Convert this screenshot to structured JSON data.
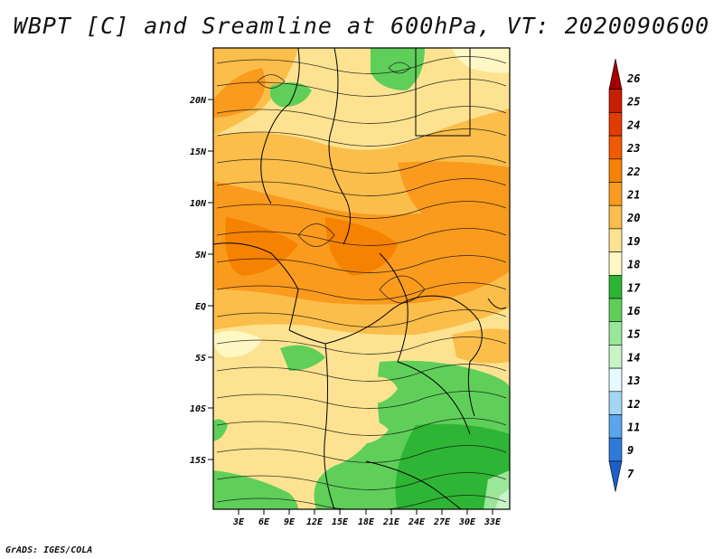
{
  "title": "WBPT [C] and Sreamline at 600hPa, VT: 2020090600",
  "footer": "GrADS: IGES/COLA",
  "map": {
    "lat_labels": [
      "20N",
      "15N",
      "10N",
      "5N",
      "EQ",
      "5S",
      "10S",
      "15S"
    ],
    "lon_labels": [
      "3E",
      "6E",
      "9E",
      "12E",
      "15E",
      "18E",
      "21E",
      "24E",
      "27E",
      "30E",
      "33E"
    ]
  },
  "colorbar": {
    "levels": [
      "26",
      "25",
      "24",
      "23",
      "22",
      "21",
      "20",
      "19",
      "18",
      "17",
      "16",
      "15",
      "14",
      "13",
      "12",
      "11",
      "9",
      "7"
    ],
    "colors": [
      "#a50000",
      "#c81e00",
      "#e13c00",
      "#f05a00",
      "#f58200",
      "#fa9b1e",
      "#fbbe4b",
      "#fde391",
      "#fff8c5",
      "#2eb535",
      "#5fcf5a",
      "#9be69a",
      "#c8f5c8",
      "#e6fbff",
      "#a3d6f5",
      "#5aa6ec",
      "#2f7ad8",
      "#1e5fc8"
    ]
  }
}
